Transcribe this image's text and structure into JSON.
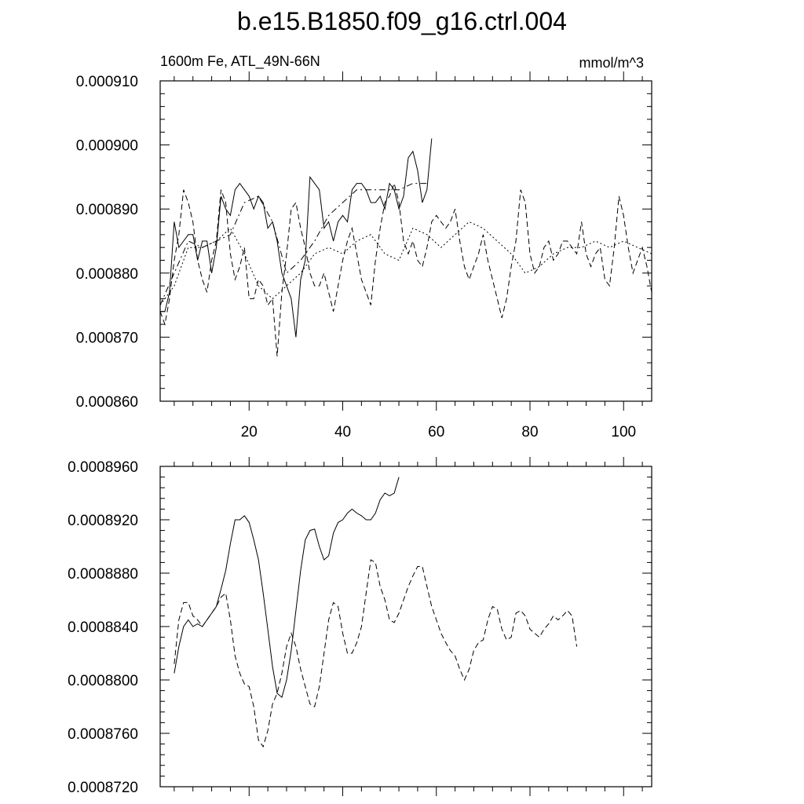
{
  "figure": {
    "title": "b.e15.B1850.f09_g16.ctrl.004",
    "left_string": "1600m Fe, ATL_49N-66N",
    "right_string": "mmol/m^3"
  },
  "chart_data": [
    {
      "type": "line",
      "title": "",
      "xlabel": "",
      "ylabel": "",
      "xlim": [
        1,
        106
      ],
      "ylim": [
        0.00086,
        0.00091
      ],
      "x_ticks": [
        20,
        40,
        60,
        80,
        100
      ],
      "x_tick_labels": [
        "20",
        "40",
        "60",
        "80",
        "100"
      ],
      "y_ticks": [
        0.00086,
        0.00087,
        0.00088,
        0.00089,
        0.0009,
        0.00091
      ],
      "y_tick_labels": [
        "0.000860",
        "0.000870",
        "0.000880",
        "0.000890",
        "0.000900",
        "0.000910"
      ],
      "grid": false,
      "series": [
        {
          "style": "solid",
          "x": [
            1,
            2,
            3,
            4,
            5,
            6,
            7,
            8,
            9,
            10,
            11,
            12,
            13,
            14,
            15,
            16,
            17,
            18,
            19,
            20,
            21,
            22,
            23,
            24,
            25,
            26,
            27,
            28,
            29,
            30,
            31,
            32,
            33,
            34,
            35,
            36,
            37,
            38,
            39,
            40,
            41,
            42,
            43,
            44,
            45,
            46,
            47,
            48,
            49,
            50,
            51,
            52,
            53,
            54,
            55,
            56,
            57,
            58,
            59,
            60,
            61
          ],
          "y": [
            0.000874,
            0.000874,
            0.000877,
            0.000888,
            0.000884,
            0.000885,
            0.000886,
            0.000886,
            0.000882,
            0.000885,
            0.000885,
            0.00088,
            0.000884,
            0.000892,
            0.00089,
            0.000889,
            0.000893,
            0.000894,
            0.000893,
            0.000892,
            0.00089,
            0.000892,
            0.000891,
            0.000887,
            0.000888,
            0.000885,
            0.00088,
            0.000878,
            0.000876,
            0.00087,
            0.000879,
            0.000882,
            0.000895,
            0.000894,
            0.000893,
            0.000887,
            0.000888,
            0.000885,
            0.000888,
            0.000889,
            0.000888,
            0.000893,
            0.000894,
            0.000894,
            0.000893,
            0.000891,
            0.000891,
            0.000892,
            0.00089,
            0.000894,
            0.000893,
            0.00089,
            0.000892,
            0.000898,
            0.000899,
            0.000896,
            0.000891,
            0.000893,
            0.000901,
            null,
            null
          ]
        },
        {
          "style": "dashed",
          "x": [
            1,
            2,
            3,
            4,
            5,
            6,
            7,
            8,
            9,
            10,
            11,
            12,
            13,
            14,
            15,
            16,
            17,
            18,
            19,
            20,
            21,
            22,
            23,
            24,
            25,
            26,
            27,
            28,
            29,
            30,
            31,
            32,
            33,
            34,
            35,
            36,
            37,
            38,
            39,
            40,
            41,
            42,
            43,
            44,
            45,
            46,
            47,
            48,
            49,
            50,
            51,
            52,
            53,
            54,
            55,
            56,
            57,
            58,
            59,
            60,
            61,
            62,
            63,
            64,
            65,
            66,
            67,
            68,
            69,
            70,
            71,
            72,
            73,
            74,
            75,
            76,
            77,
            78,
            79,
            80,
            81,
            82,
            83,
            84,
            85,
            86,
            87,
            88,
            89,
            90,
            91,
            92,
            93,
            94,
            95,
            96,
            97,
            98,
            99,
            100,
            101,
            102,
            103,
            104,
            105,
            106
          ],
          "y": [
            0.000874,
            0.000872,
            0.000876,
            0.000882,
            0.000886,
            0.000893,
            0.000891,
            0.000888,
            0.000882,
            0.000879,
            0.000877,
            0.000882,
            0.000885,
            0.000893,
            0.000891,
            0.000883,
            0.000879,
            0.000881,
            0.000884,
            0.000876,
            0.000876,
            0.000879,
            0.000878,
            0.000875,
            0.000876,
            0.000867,
            0.000877,
            0.000883,
            0.00089,
            0.000891,
            0.000887,
            0.000884,
            0.00088,
            0.000878,
            0.000878,
            0.00088,
            0.000877,
            0.000874,
            0.000878,
            0.000882,
            0.000885,
            0.000887,
            0.000883,
            0.000879,
            0.000877,
            0.000875,
            0.000882,
            0.000887,
            0.000891,
            0.000892,
            0.000894,
            0.000891,
            0.000885,
            0.000883,
            0.000885,
            0.000882,
            0.000881,
            0.000884,
            0.000888,
            0.000889,
            0.000888,
            0.000887,
            0.000888,
            0.00089,
            0.000885,
            0.000881,
            0.000879,
            0.000881,
            0.000883,
            0.000886,
            0.000882,
            0.000879,
            0.000876,
            0.000873,
            0.000876,
            0.000881,
            0.000885,
            0.000893,
            0.000891,
            0.000883,
            0.00088,
            0.000881,
            0.000884,
            0.000885,
            0.000882,
            0.000883,
            0.000885,
            0.000885,
            0.000884,
            0.000883,
            0.000888,
            0.000883,
            0.000881,
            0.000883,
            0.000884,
            0.000879,
            0.000878,
            0.000884,
            0.000892,
            0.000889,
            0.000884,
            0.00088,
            0.000882,
            0.000884,
            0.000881,
            0.000877
          ]
        },
        {
          "style": "dash-dot",
          "x": [
            1,
            4,
            7,
            10,
            13,
            16,
            19,
            22,
            25,
            28,
            31,
            34,
            37,
            40,
            43,
            46,
            49,
            52,
            55,
            58,
            61,
            64,
            67,
            70,
            73,
            76,
            79,
            82,
            85,
            88,
            91,
            94,
            97,
            100,
            103,
            106
          ],
          "y": [
            0.000875,
            0.00088,
            0.000885,
            0.000884,
            0.000885,
            0.000886,
            0.000891,
            0.000892,
            0.000888,
            0.00088,
            0.000882,
            0.000885,
            0.000889,
            0.000891,
            0.000893,
            0.000893,
            0.000893,
            0.000893,
            0.000894,
            0.000894,
            null,
            null,
            null,
            null,
            null,
            null,
            null,
            null,
            null,
            null,
            null,
            null,
            null,
            null,
            null,
            null
          ]
        },
        {
          "style": "dash-dot-dot",
          "x": [
            1,
            4,
            7,
            10,
            13,
            16,
            19,
            22,
            25,
            28,
            31,
            34,
            37,
            40,
            43,
            46,
            49,
            52,
            55,
            58,
            61,
            64,
            67,
            70,
            73,
            76,
            79,
            82,
            85,
            88,
            91,
            94,
            97,
            100,
            103,
            106
          ],
          "y": [
            0.000875,
            0.000878,
            0.000884,
            0.000884,
            0.000885,
            0.000887,
            0.000883,
            0.000878,
            0.000876,
            0.000878,
            0.00088,
            0.000883,
            0.000884,
            0.000883,
            0.000885,
            0.000886,
            0.000883,
            0.000882,
            0.000887,
            0.000886,
            0.000884,
            0.000886,
            0.000888,
            0.000887,
            0.000885,
            0.000883,
            0.00088,
            0.000881,
            0.000883,
            0.000884,
            0.000884,
            0.000885,
            0.000884,
            0.000885,
            0.000884,
            0.000883
          ]
        }
      ]
    },
    {
      "type": "line",
      "title": "",
      "xlabel": "",
      "ylabel": "",
      "xlim": [
        1,
        106
      ],
      "ylim": [
        0.000872,
        0.000896
      ],
      "x_ticks": [
        20,
        40,
        60,
        80,
        100
      ],
      "x_tick_labels": [],
      "y_ticks": [
        0.000872,
        0.000876,
        0.00088,
        0.000884,
        0.000888,
        0.000892,
        0.000896
      ],
      "y_tick_labels": [
        "0.0008720",
        "0.0008760",
        "0.0008800",
        "0.0008840",
        "0.0008880",
        "0.0008920",
        "0.0008960"
      ],
      "grid": false,
      "series": [
        {
          "style": "solid",
          "x": [
            4,
            5,
            6,
            7,
            8,
            9,
            10,
            11,
            12,
            13,
            14,
            15,
            16,
            17,
            18,
            19,
            20,
            21,
            22,
            23,
            24,
            25,
            26,
            27,
            28,
            29,
            30,
            31,
            32,
            33,
            34,
            35,
            36,
            37,
            38,
            39,
            40,
            41,
            42,
            43,
            44,
            45,
            46,
            47,
            48,
            49,
            50,
            51,
            52,
            53,
            54,
            55,
            56,
            57,
            58
          ],
          "y": [
            0.0008805,
            0.0008825,
            0.000884,
            0.0008845,
            0.000884,
            0.0008842,
            0.000884,
            0.0008845,
            0.000885,
            0.0008855,
            0.0008868,
            0.0008882,
            0.0008902,
            0.000892,
            0.000892,
            0.0008923,
            0.0008918,
            0.0008905,
            0.000889,
            0.0008865,
            0.0008838,
            0.000881,
            0.000879,
            0.0008787,
            0.00088,
            0.0008822,
            0.0008852,
            0.0008882,
            0.0008905,
            0.0008912,
            0.0008913,
            0.00089,
            0.000889,
            0.0008893,
            0.000891,
            0.0008918,
            0.000892,
            0.0008925,
            0.0008928,
            0.0008925,
            0.0008923,
            0.000892,
            0.000892,
            0.0008925,
            0.0008935,
            0.000894,
            0.0008938,
            0.000894,
            0.0008952,
            null,
            null,
            null,
            null,
            null,
            null
          ]
        },
        {
          "style": "dashed",
          "x": [
            4,
            5,
            6,
            7,
            8,
            9,
            10,
            11,
            12,
            13,
            14,
            15,
            16,
            17,
            18,
            19,
            20,
            21,
            22,
            23,
            24,
            25,
            26,
            27,
            28,
            29,
            30,
            31,
            32,
            33,
            34,
            35,
            36,
            37,
            38,
            39,
            40,
            41,
            42,
            43,
            44,
            45,
            46,
            47,
            48,
            49,
            50,
            51,
            52,
            53,
            54,
            55,
            56,
            57,
            58,
            59,
            60,
            61,
            62,
            63,
            64,
            65,
            66,
            67,
            68,
            69,
            70,
            71,
            72,
            73,
            74,
            75,
            76,
            77,
            78,
            79,
            80,
            81,
            82,
            83,
            84,
            85,
            86,
            87,
            88,
            89,
            90,
            91,
            92,
            93,
            94,
            95,
            96,
            97,
            98,
            99,
            100,
            101,
            102,
            103
          ],
          "y": [
            0.0008812,
            0.0008845,
            0.0008858,
            0.0008858,
            0.0008848,
            0.0008845,
            0.000884,
            0.0008845,
            0.000885,
            0.0008855,
            0.0008862,
            0.0008865,
            0.0008845,
            0.0008818,
            0.0008805,
            0.0008797,
            0.0008795,
            0.000878,
            0.0008755,
            0.000875,
            0.0008762,
            0.0008782,
            0.000879,
            0.0008805,
            0.0008825,
            0.0008835,
            0.0008825,
            0.0008808,
            0.0008795,
            0.0008782,
            0.000878,
            0.0008795,
            0.000882,
            0.0008845,
            0.0008858,
            0.0008855,
            0.0008835,
            0.000882,
            0.000882,
            0.0008828,
            0.000884,
            0.0008865,
            0.000889,
            0.0008888,
            0.000887,
            0.000886,
            0.0008845,
            0.0008843,
            0.000885,
            0.000886,
            0.000887,
            0.0008878,
            0.0008885,
            0.0008885,
            0.000887,
            0.0008855,
            0.0008845,
            0.0008835,
            0.0008828,
            0.0008822,
            0.0008818,
            0.0008808,
            0.00088,
            0.0008808,
            0.0008822,
            0.0008828,
            0.000883,
            0.0008845,
            0.0008855,
            0.0008853,
            0.0008838,
            0.000883,
            0.0008832,
            0.000885,
            0.0008852,
            0.0008848,
            0.0008838,
            0.0008835,
            0.0008832,
            0.0008838,
            0.0008842,
            0.0008848,
            0.0008845,
            0.0008848,
            0.0008852,
            0.0008848,
            0.0008825,
            null,
            null,
            null,
            null,
            null,
            null,
            null,
            null,
            null,
            null,
            null,
            null,
            null
          ]
        }
      ]
    }
  ]
}
